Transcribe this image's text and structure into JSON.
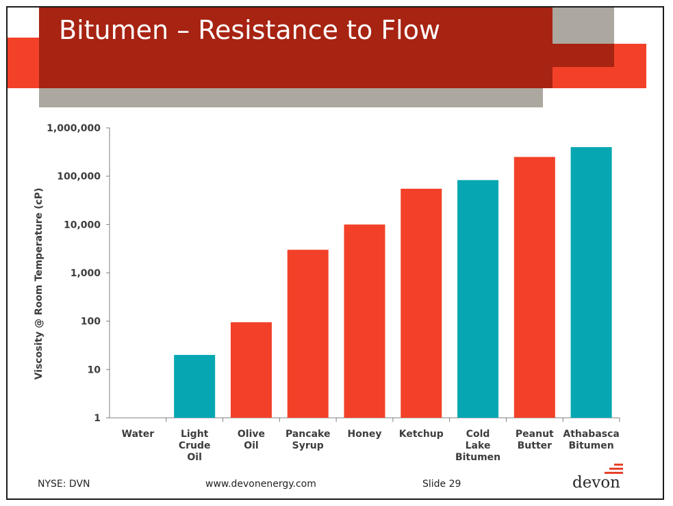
{
  "slide": {
    "title": "Bitumen – Resistance to Flow",
    "footer_left": "NYSE: DVN",
    "footer_center": "www.devonenergy.com",
    "footer_right": "Slide 29",
    "logo": "devon"
  },
  "colors": {
    "red": "#f24128",
    "teal": "#06a7b2",
    "dark_red": "#a72312",
    "gray": "#aca79f",
    "axis": "#7f7f7f",
    "text": "#3c3c3c"
  },
  "chart_data": {
    "type": "bar",
    "scale": "log",
    "ylabel": "Viscosity @ Room Temperature (cP)",
    "xlabel": "",
    "ylim": [
      1,
      1000000
    ],
    "yticks": [
      "1",
      "10",
      "100",
      "1,000",
      "10,000",
      "100,000",
      "1,000,000"
    ],
    "ytick_values": [
      1,
      10,
      100,
      1000,
      10000,
      100000,
      1000000
    ],
    "categories": [
      {
        "label": [
          "Water"
        ],
        "value": 1,
        "color": "teal"
      },
      {
        "label": [
          "Light",
          "Crude",
          "Oil"
        ],
        "value": 20,
        "color": "teal"
      },
      {
        "label": [
          "Olive",
          "Oil"
        ],
        "value": 95,
        "color": "red"
      },
      {
        "label": [
          "Pancake",
          "Syrup"
        ],
        "value": 3000,
        "color": "red"
      },
      {
        "label": [
          "Honey"
        ],
        "value": 10000,
        "color": "red"
      },
      {
        "label": [
          "Ketchup"
        ],
        "value": 55000,
        "color": "red"
      },
      {
        "label": [
          "Cold",
          "Lake",
          "Bitumen"
        ],
        "value": 83000,
        "color": "teal"
      },
      {
        "label": [
          "Peanut",
          "Butter"
        ],
        "value": 250000,
        "color": "red"
      },
      {
        "label": [
          "Athabasca",
          "Bitumen"
        ],
        "value": 400000,
        "color": "teal"
      }
    ],
    "grid": false,
    "legend": "none"
  }
}
